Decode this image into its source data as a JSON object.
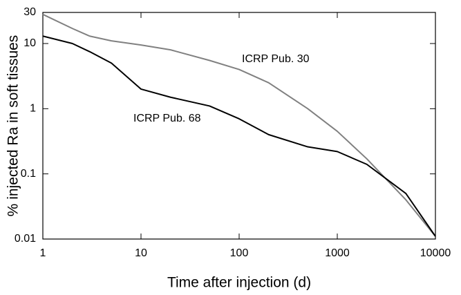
{
  "chart_data": {
    "type": "line",
    "x_label": "Time after injection (d)",
    "y_label": "% injected Ra in soft tissues",
    "x_log": true,
    "y_log": true,
    "xlim": [
      1,
      10000
    ],
    "ylim": [
      0.01,
      30
    ],
    "xticks": [
      1,
      10,
      100,
      1000,
      10000
    ],
    "yticks": [
      0.01,
      0.1,
      1,
      10,
      30
    ],
    "x": [
      1,
      2,
      3,
      5,
      10,
      20,
      50,
      100,
      200,
      500,
      1000,
      2000,
      5000,
      10000
    ],
    "series": [
      {
        "name": "ICRP Pub. 30",
        "color": "#808080",
        "values": [
          28,
          17,
          13,
          11,
          9.5,
          8,
          5.5,
          4,
          2.5,
          1,
          0.45,
          0.17,
          0.04,
          0.011
        ]
      },
      {
        "name": "ICRP Pub. 68",
        "color": "#000000",
        "values": [
          13,
          10,
          7.5,
          5,
          2,
          1.5,
          1.1,
          0.7,
          0.4,
          0.26,
          0.22,
          0.14,
          0.05,
          0.011
        ]
      }
    ]
  }
}
